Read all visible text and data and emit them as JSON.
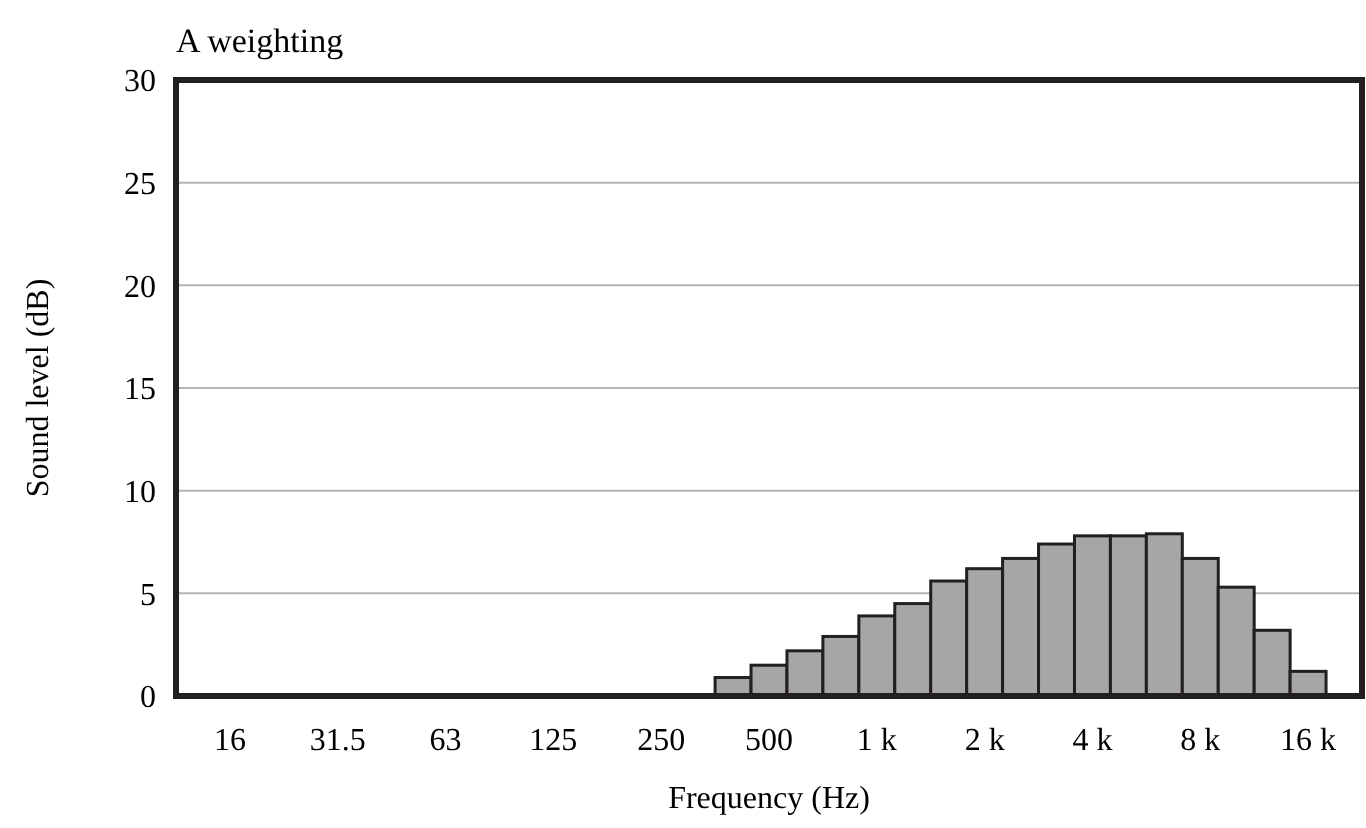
{
  "chart_data": {
    "type": "bar",
    "title": "A weighting",
    "xlabel": "Frequency (Hz)",
    "ylabel": "Sound level (dB)",
    "categories": [
      null,
      "16",
      null,
      null,
      "31.5",
      null,
      null,
      "63",
      null,
      null,
      "125",
      null,
      null,
      "250",
      null,
      null,
      "500",
      null,
      null,
      "1 k",
      null,
      null,
      "2 k",
      null,
      null,
      "4 k",
      null,
      null,
      "8 k",
      null,
      null,
      "16 k",
      null
    ],
    "values": [
      0,
      0,
      0,
      0,
      0,
      0,
      0,
      0,
      0,
      0,
      0,
      0,
      0,
      0,
      0,
      0.9,
      1.5,
      2.2,
      2.9,
      3.9,
      4.5,
      5.6,
      6.2,
      6.7,
      7.4,
      7.8,
      7.8,
      7.9,
      6.7,
      5.3,
      3.2,
      1.2,
      0
    ],
    "color": "#a6a5a8",
    "ylim": [
      0,
      30
    ],
    "yticks": [
      0,
      5,
      10,
      15,
      20,
      25,
      30
    ],
    "grid": "y"
  }
}
